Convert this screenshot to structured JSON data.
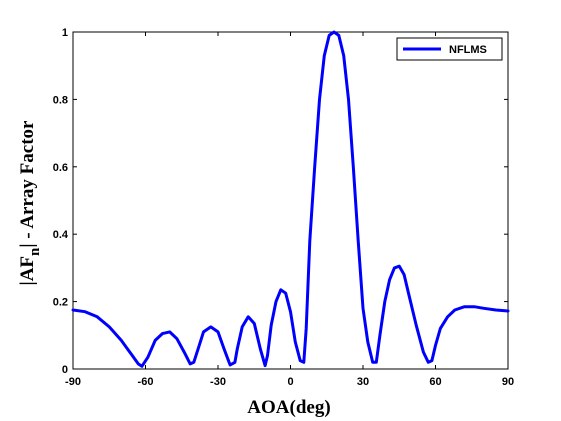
{
  "chart_data": {
    "type": "line",
    "title": "",
    "xlabel": "AOA(deg)",
    "ylabel_main": "|AF",
    "ylabel_sub": "n",
    "ylabel_rest": "| - Array Factor",
    "xlim": [
      -90,
      90
    ],
    "ylim": [
      0,
      1
    ],
    "xticks": [
      -90,
      -60,
      -30,
      0,
      30,
      60,
      90
    ],
    "xtick_labels": [
      "-90",
      "-60",
      "-30",
      "0",
      "30",
      "60",
      "90"
    ],
    "yticks": [
      0,
      0.2,
      0.4,
      0.6,
      0.8,
      1
    ],
    "ytick_labels": [
      "0",
      "0.2",
      "0.4",
      "0.6",
      "0.8",
      "1"
    ],
    "grid": false,
    "legend_position": "top-right",
    "series": [
      {
        "name": "NFLMS",
        "color": "#0000ff",
        "x": [
          -90,
          -85,
          -80,
          -75,
          -70,
          -66,
          -63,
          -61.5,
          -59,
          -56,
          -53,
          -50,
          -47,
          -44,
          -41.5,
          -40,
          -38,
          -36,
          -33,
          -30,
          -27.5,
          -25,
          -23,
          -22,
          -20,
          -17.5,
          -15,
          -12.5,
          -10.5,
          -9.5,
          -8,
          -6,
          -4,
          -2,
          0,
          2,
          4,
          5.5,
          6.5,
          8,
          10,
          12,
          14,
          16,
          18,
          20,
          22,
          24,
          26,
          28,
          30,
          32,
          34,
          35.5,
          37,
          39,
          41,
          43,
          45,
          47,
          49,
          52,
          55,
          57,
          58.5,
          60,
          62,
          65,
          68,
          72,
          76,
          80,
          85,
          90
        ],
        "y": [
          0.175,
          0.17,
          0.155,
          0.125,
          0.085,
          0.045,
          0.015,
          0.008,
          0.035,
          0.085,
          0.105,
          0.11,
          0.09,
          0.05,
          0.015,
          0.02,
          0.065,
          0.11,
          0.125,
          0.11,
          0.06,
          0.012,
          0.02,
          0.06,
          0.125,
          0.155,
          0.135,
          0.06,
          0.01,
          0.04,
          0.13,
          0.2,
          0.235,
          0.225,
          0.17,
          0.08,
          0.025,
          0.02,
          0.12,
          0.38,
          0.6,
          0.8,
          0.93,
          0.99,
          1.0,
          0.99,
          0.93,
          0.8,
          0.6,
          0.38,
          0.18,
          0.08,
          0.02,
          0.02,
          0.1,
          0.2,
          0.265,
          0.3,
          0.305,
          0.28,
          0.22,
          0.13,
          0.05,
          0.02,
          0.025,
          0.07,
          0.12,
          0.155,
          0.175,
          0.185,
          0.185,
          0.18,
          0.175,
          0.172
        ]
      }
    ]
  }
}
